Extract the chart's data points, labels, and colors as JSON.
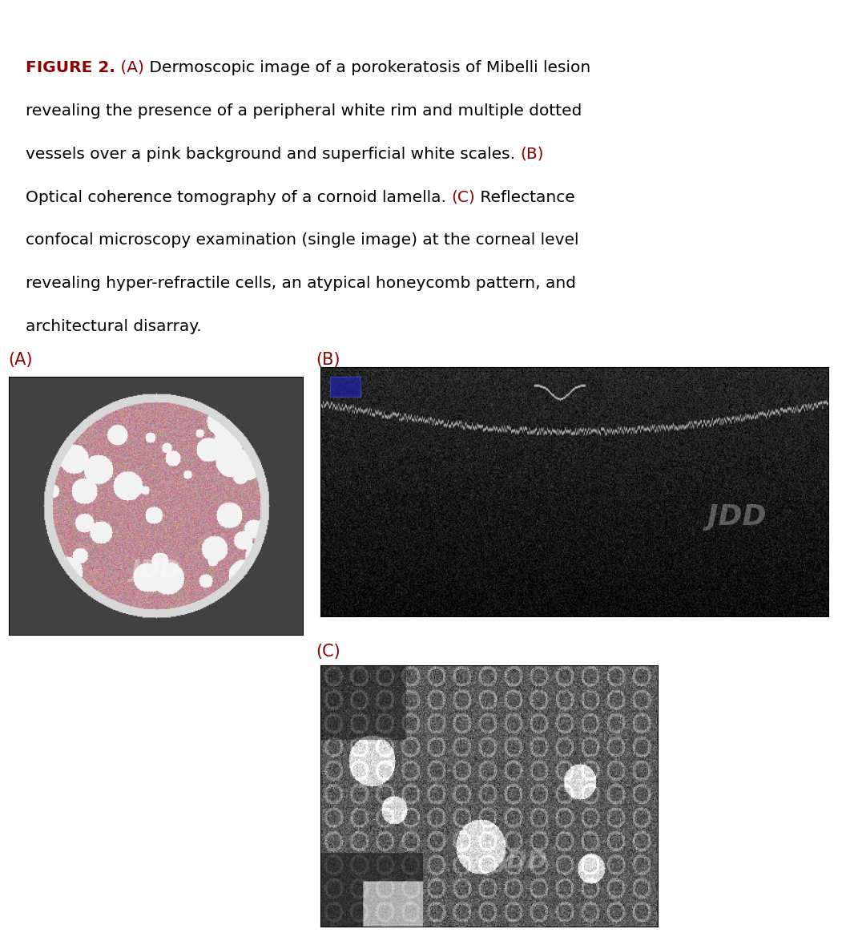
{
  "title_bold": "FIGURE 2.",
  "title_color_bold": "#8B0000",
  "caption_parts": [
    {
      "text": "FIGURE 2.",
      "bold": true,
      "color": "#8B0000"
    },
    {
      "text": " (A)",
      "bold": false,
      "color": "#8B0000"
    },
    {
      "text": " Dermoscopic image of a porokeratosis of Mibelli lesion revealing the presence of a peripheral white rim and multiple dotted vessels over a pink background and superficial white scales. ",
      "bold": false,
      "color": "#000000"
    },
    {
      "text": "(B)",
      "bold": false,
      "color": "#8B0000"
    },
    {
      "text": " Optical coherence tomography of a cornoid lamella. ",
      "bold": false,
      "color": "#000000"
    },
    {
      "text": "(C)",
      "bold": false,
      "color": "#8B0000"
    },
    {
      "text": " Reflectance confocal microscopy examination (single image) at the corneal level revealing hyper-refractile cells, an atypical honeycomb pattern, and architectural disarray.",
      "bold": false,
      "color": "#000000"
    }
  ],
  "label_A": "(A)",
  "label_B": "(B)",
  "label_C": "(C)",
  "label_color": "#8B0000",
  "background_color": "#ffffff",
  "top_bar_color": "#8B0000",
  "font_family": "DejaVu Sans",
  "caption_fontsize": 14.5,
  "label_fontsize": 15
}
